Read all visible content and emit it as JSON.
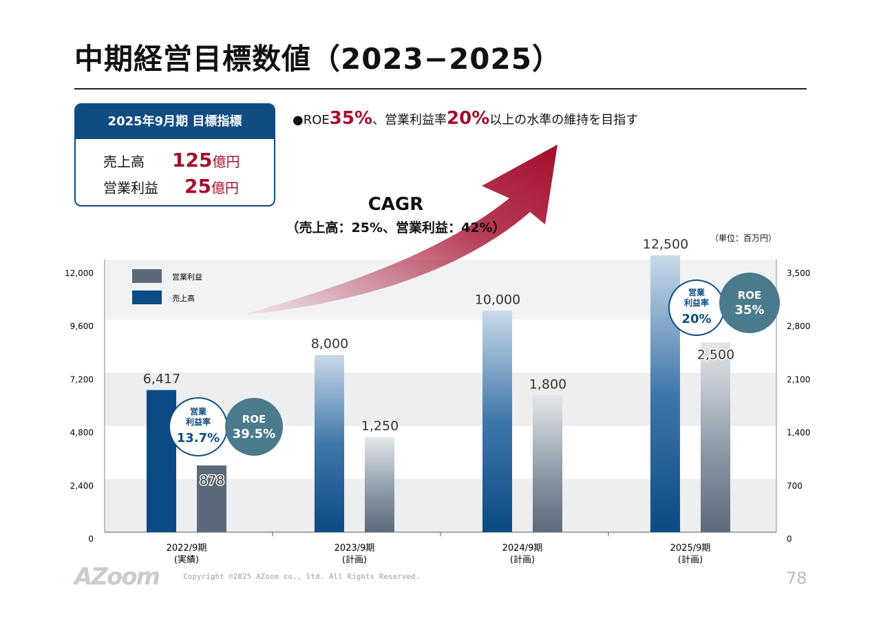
{
  "title": "中期経営目標数値（2023−2025）",
  "target_box": {
    "header": "2025年9月期 目標指標",
    "rows": [
      {
        "label": "売上高",
        "value": "125",
        "unit": "億円"
      },
      {
        "label": "営業利益",
        "value": "25",
        "unit": "億円"
      }
    ]
  },
  "bullet": {
    "dot": "●",
    "p1": "ROE",
    "v1": "35%",
    "p2": "、営業利益率",
    "v2": "20%",
    "p3": "以上の水準の維持を目指す"
  },
  "cagr": {
    "title": "CAGR",
    "detail": "（売上高：25%、営業利益：42%）"
  },
  "unit_note": "（単位：百万円）",
  "colors": {
    "sales": "#0b4a85",
    "profit": "#5b6a7a",
    "accent": "#a50e2d",
    "roe_circle": "#4a7a8c"
  },
  "chart_data": {
    "type": "bar",
    "categories": [
      [
        "2022/9期",
        "(実績)"
      ],
      [
        "2023/9期",
        "(計画)"
      ],
      [
        "2024/9期",
        "(計画)"
      ],
      [
        "2025/9期",
        "(計画)"
      ]
    ],
    "series": [
      {
        "name": "売上高",
        "axis": "left",
        "values": [
          6417,
          8000,
          10000,
          12500
        ],
        "labels": [
          "6,417",
          "8,000",
          "10,000",
          "12,500"
        ]
      },
      {
        "name": "営業利益",
        "axis": "right",
        "values": [
          878,
          1250,
          1800,
          2500
        ],
        "labels": [
          "878",
          "1,250",
          "1,800",
          "2,500"
        ]
      }
    ],
    "left_axis": {
      "ylim": [
        0,
        12000
      ],
      "ticks": [
        "0",
        "2,400",
        "4,800",
        "7,200",
        "9,600",
        "12,000"
      ]
    },
    "right_axis": {
      "ylim": [
        0,
        3500
      ],
      "ticks": [
        "0",
        "700",
        "1,400",
        "2,100",
        "2,800",
        "3,500"
      ]
    },
    "legend": [
      "営業利益",
      "売上高"
    ],
    "legend_placement": "top-left",
    "annotations": [
      {
        "group": 0,
        "margin_label": [
          "営業",
          "利益率"
        ],
        "margin": "13.7%",
        "roe_label": "ROE",
        "roe": "39.5%"
      },
      {
        "group": 3,
        "margin_label": [
          "営業",
          "利益率"
        ],
        "margin": "20%",
        "roe_label": "ROE",
        "roe": "35%"
      }
    ]
  },
  "footer": {
    "logo": "AZoom",
    "copyright": "Copyright ©2025 AZoom co., ltd. All Rights Reserved.",
    "page": "78"
  }
}
